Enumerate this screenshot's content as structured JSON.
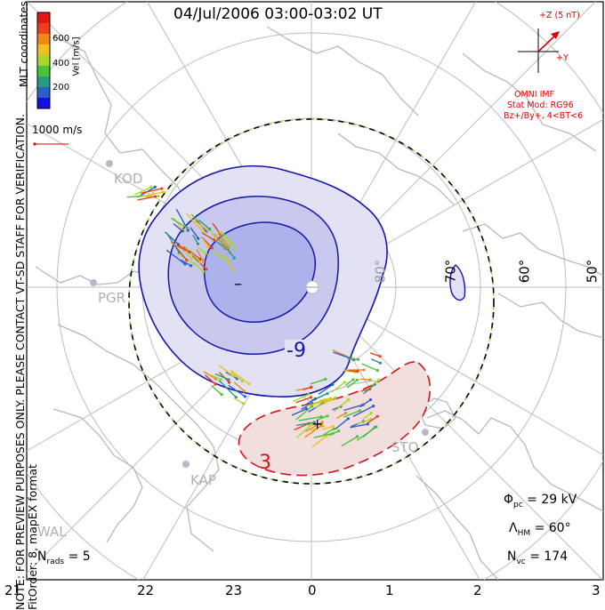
{
  "title": "04/Jul/2006 03:00-03:02 UT",
  "side_note": {
    "line1": "NOTE: FOR PREVIEW PURPOSES ONLY. PLEASE CONTACT VT-SD STAFF FOR VERIFICATION.",
    "line2": "FitOrder: 8, mapEX format"
  },
  "coordinates_label": "MLT coordinates",
  "colorbar": {
    "label": "Vel [m/s]",
    "ticks": [
      "600",
      "400",
      "200"
    ],
    "colors": [
      "#1010e0",
      "#2c5fc8",
      "#2a9a86",
      "#4cc23a",
      "#a8d82a",
      "#f0c020",
      "#f08818",
      "#e84020",
      "#e01818"
    ]
  },
  "velocity_scale": "1000 m/s",
  "imf": {
    "z_label": "+Z (5 nT)",
    "y_label": "+Y",
    "source": "OMNI IMF",
    "model": "Stat Mod: RG96",
    "condition": "Bz+/By+, 4<BT<6"
  },
  "stats": {
    "n_rads_symbol": "N",
    "n_rads_sub": "rads",
    "n_rads_value": "= 5",
    "phi_symbol": "Φ",
    "phi_sub": "pc",
    "phi_value": "= 29 kV",
    "lambda_symbol": "Λ",
    "lambda_sub": "HM",
    "lambda_value": "= 60°",
    "nvc_symbol": "N",
    "nvc_sub": "vc",
    "nvc_value": "= 174"
  },
  "mlt_ticks": [
    "21",
    "22",
    "23",
    "0",
    "1",
    "2",
    "3"
  ],
  "latitude_labels": [
    "80°",
    "70°",
    "60°",
    "50°"
  ],
  "radar_sites": [
    "KOD",
    "PGR",
    "KAP",
    "STO",
    "WAL"
  ],
  "contour_labels": [
    "-9",
    "3"
  ],
  "potential_markers": {
    "min": "–",
    "max": "+"
  }
}
